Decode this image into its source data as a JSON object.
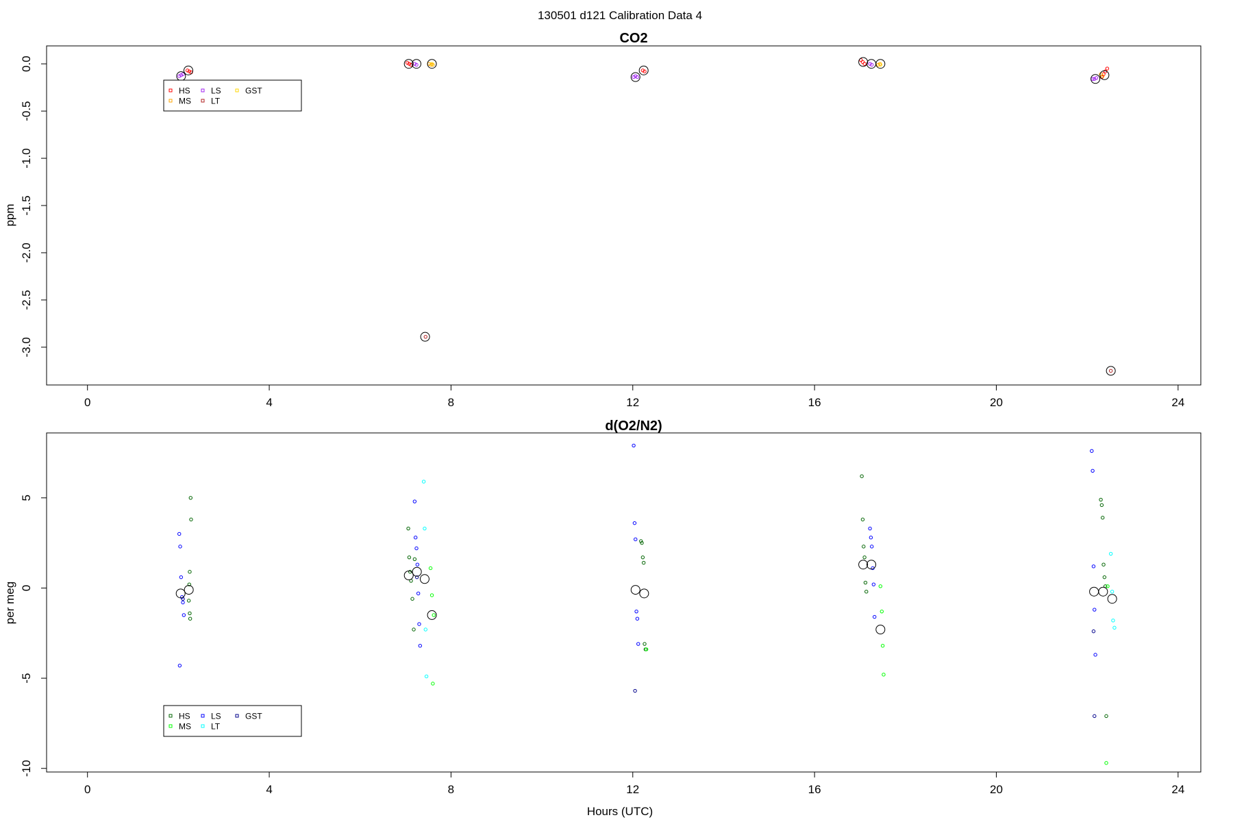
{
  "figure": {
    "title": "130501   d121   Calibration Data 4"
  },
  "chart_data": [
    {
      "type": "scatter",
      "title": "CO2",
      "xlabel": "",
      "ylabel": "ppm",
      "xlim": [
        -0.9,
        24.5
      ],
      "ylim": [
        -3.4,
        0.19
      ],
      "xticks": [
        0,
        4,
        8,
        12,
        16,
        20,
        24
      ],
      "yticks": [
        0.0,
        -0.5,
        -1.0,
        -1.5,
        -2.0,
        -2.5,
        -3.0
      ],
      "ytick_labels": [
        "0.0",
        "-0.5",
        "-1.0",
        "-1.5",
        "-2.0",
        "-2.5",
        "-3.0"
      ],
      "legend": {
        "position": "top-left",
        "entries": [
          {
            "label": "HS",
            "color": "#ff0000"
          },
          {
            "label": "LS",
            "color": "#a020f0"
          },
          {
            "label": "GST",
            "color": "#ffd700"
          },
          {
            "label": "MS",
            "color": "#ffa500"
          },
          {
            "label": "LT",
            "color": "#b22222"
          }
        ]
      },
      "series": [
        {
          "name": "HS",
          "color": "#ff0000",
          "x": [
            2.2,
            2.24,
            2.28,
            7.04,
            7.08,
            7.12,
            17.02,
            17.06,
            17.1,
            22.32,
            22.36,
            22.4,
            22.44,
            12.22,
            12.26
          ],
          "y": [
            -0.07,
            -0.08,
            -0.09,
            0.01,
            0.0,
            -0.01,
            0.04,
            0.02,
            0.0,
            -0.14,
            -0.11,
            -0.08,
            -0.05,
            -0.07,
            -0.08
          ]
        },
        {
          "name": "MS",
          "color": "#ffa500",
          "x": [
            7.52,
            7.56,
            7.6,
            17.4,
            17.44,
            22.3,
            22.34
          ],
          "y": [
            0.0,
            -0.01,
            -0.01,
            -0.01,
            0.0,
            -0.11,
            -0.13
          ]
        },
        {
          "name": "LS",
          "color": "#a020f0",
          "x": [
            2.02,
            2.06,
            2.1,
            7.2,
            7.24,
            12.02,
            12.06,
            12.1,
            17.22,
            17.26,
            22.12,
            22.16,
            22.2
          ],
          "y": [
            -0.13,
            -0.12,
            -0.11,
            0.0,
            -0.01,
            -0.14,
            -0.13,
            -0.14,
            0.0,
            -0.01,
            -0.16,
            -0.16,
            -0.15
          ]
        },
        {
          "name": "LT",
          "color": "#b22222",
          "x": [
            7.44,
            22.52
          ],
          "y": [
            -2.89,
            -3.25
          ]
        },
        {
          "name": "GST",
          "color": "#ffd700",
          "x": [
            7.58,
            17.45
          ],
          "y": [
            0.0,
            -0.01
          ]
        }
      ],
      "means": {
        "x": [
          2.06,
          2.22,
          7.07,
          7.24,
          7.43,
          7.58,
          12.06,
          12.24,
          17.07,
          17.25,
          17.45,
          22.18,
          22.38,
          22.52
        ],
        "y": [
          -0.13,
          -0.07,
          0.0,
          0.0,
          -2.89,
          0.0,
          -0.14,
          -0.07,
          0.02,
          0.0,
          0.0,
          -0.16,
          -0.12,
          -3.25
        ]
      }
    },
    {
      "type": "scatter",
      "title": "d(O2/N2)",
      "xlabel": "Hours (UTC)",
      "ylabel": "per meg",
      "xlim": [
        -0.9,
        24.5
      ],
      "ylim": [
        -10.2,
        8.6
      ],
      "xticks": [
        0,
        4,
        8,
        12,
        16,
        20,
        24
      ],
      "yticks": [
        5,
        0,
        -5,
        -10
      ],
      "ytick_labels": [
        "5",
        "0",
        "-5",
        "-10"
      ],
      "legend": {
        "position": "bottom-left",
        "entries": [
          {
            "label": "HS",
            "color": "#006400"
          },
          {
            "label": "LS",
            "color": "#0000ff"
          },
          {
            "label": "GST",
            "color": "#00008b"
          },
          {
            "label": "MS",
            "color": "#00ff00"
          },
          {
            "label": "LT",
            "color": "#00ffff"
          }
        ]
      },
      "series": [
        {
          "name": "HS",
          "color": "#006400",
          "x": [
            2.27,
            2.28,
            2.25,
            2.24,
            2.23,
            2.25,
            2.26,
            7.06,
            7.08,
            7.1,
            7.12,
            7.15,
            7.18,
            7.2,
            12.18,
            12.2,
            12.22,
            12.24,
            12.26,
            12.28,
            17.04,
            17.06,
            17.08,
            17.1,
            17.12,
            17.14,
            22.3,
            22.32,
            22.34,
            22.36,
            22.38,
            22.4,
            22.42
          ],
          "y": [
            5.0,
            3.8,
            0.9,
            0.2,
            -0.7,
            -1.4,
            -1.7,
            3.3,
            1.7,
            0.9,
            0.4,
            -0.6,
            -2.3,
            1.6,
            2.6,
            2.5,
            1.7,
            1.4,
            -3.1,
            -3.4,
            6.2,
            3.8,
            2.3,
            1.7,
            0.3,
            -0.2,
            4.9,
            4.6,
            3.9,
            1.3,
            0.6,
            0.1,
            -7.1
          ]
        },
        {
          "name": "MS",
          "color": "#00ff00",
          "x": [
            7.55,
            7.58,
            7.6,
            7.62,
            17.45,
            17.48,
            17.5,
            17.52,
            22.42,
            22.45,
            12.3
          ],
          "y": [
            1.1,
            -0.4,
            -5.3,
            -1.5,
            0.1,
            -1.3,
            -3.2,
            -4.8,
            -9.7,
            0.1,
            -3.4
          ]
        },
        {
          "name": "LS",
          "color": "#0000ff",
          "x": [
            2.02,
            2.04,
            2.06,
            2.08,
            2.1,
            2.12,
            2.03,
            7.2,
            7.22,
            7.24,
            7.26,
            7.28,
            7.3,
            7.32,
            12.02,
            12.04,
            12.06,
            12.08,
            12.1,
            12.12,
            17.22,
            17.24,
            17.26,
            17.28,
            17.3,
            17.32,
            22.1,
            22.12,
            22.14,
            22.16,
            22.18
          ],
          "y": [
            3.0,
            2.3,
            0.6,
            -0.5,
            -0.8,
            -1.5,
            -4.3,
            4.8,
            2.8,
            2.2,
            1.3,
            -0.3,
            -2.0,
            -3.2,
            7.9,
            3.6,
            2.7,
            -1.3,
            -1.7,
            -3.1,
            3.3,
            2.8,
            2.3,
            1.1,
            0.2,
            -1.6,
            7.6,
            6.5,
            1.2,
            -1.2,
            -3.7
          ]
        },
        {
          "name": "LT",
          "color": "#00ffff",
          "x": [
            7.4,
            7.42,
            7.44,
            7.46,
            22.52,
            22.55,
            22.57,
            22.6
          ],
          "y": [
            5.9,
            3.3,
            -2.3,
            -4.9,
            1.9,
            -0.2,
            -1.8,
            -2.2
          ]
        },
        {
          "name": "GST",
          "color": "#00008b",
          "x": [
            2.1,
            22.14,
            22.16,
            12.05,
            7.25
          ],
          "y": [
            -0.6,
            -2.4,
            -7.1,
            -5.7,
            0.6
          ]
        }
      ],
      "means": {
        "x": [
          2.05,
          2.23,
          7.07,
          7.25,
          7.42,
          7.58,
          12.06,
          12.25,
          17.07,
          17.25,
          17.45,
          22.15,
          22.35,
          22.55
        ],
        "y": [
          -0.3,
          -0.1,
          0.7,
          0.9,
          0.5,
          -1.5,
          -0.1,
          -0.3,
          1.3,
          1.3,
          -2.3,
          -0.2,
          -0.2,
          -0.6
        ]
      }
    }
  ]
}
